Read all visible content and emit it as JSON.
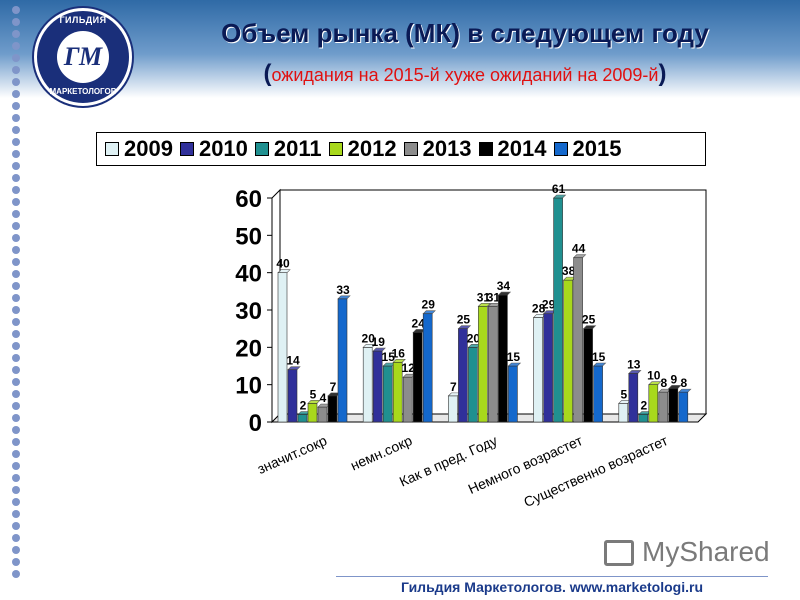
{
  "header": {
    "title": "Объем рынка (МК) в следующем году",
    "subtitle_open": "(",
    "subtitle_text": "ожидания на 2015-й хуже ожиданий на 2009-й",
    "subtitle_close": ")"
  },
  "logo": {
    "top_text": "ГИЛЬДИЯ",
    "monogram": "ГМ",
    "bottom_text": "МАРКЕТОЛОГОВ"
  },
  "chart_data": {
    "type": "bar",
    "categories": [
      "значит.сокр",
      "немн.сокр",
      "Как в пред. Году",
      "Немного возрастет",
      "Существенно возрастет"
    ],
    "series": [
      {
        "name": "2009",
        "color": "#dff1f4",
        "values": [
          40,
          20,
          7,
          28,
          5
        ]
      },
      {
        "name": "2010",
        "color": "#30309a",
        "values": [
          14,
          19,
          25,
          29,
          13
        ]
      },
      {
        "name": "2011",
        "color": "#209090",
        "values": [
          2,
          15,
          20,
          61,
          2
        ]
      },
      {
        "name": "2012",
        "color": "#a8d81c",
        "values": [
          5,
          16,
          31,
          38,
          10
        ]
      },
      {
        "name": "2013",
        "color": "#8c8c8c",
        "values": [
          4,
          12,
          31,
          44,
          8
        ]
      },
      {
        "name": "2014",
        "color": "#000000",
        "values": [
          7,
          24,
          34,
          25,
          9
        ]
      },
      {
        "name": "2015",
        "color": "#1468cc",
        "values": [
          33,
          29,
          15,
          15,
          8
        ]
      }
    ],
    "yticks": [
      "0",
      "10",
      "20",
      "30",
      "40",
      "50",
      "60"
    ],
    "ylim": [
      0,
      60
    ],
    "grid": false,
    "legend": "top"
  },
  "mystat": {
    "logo_text": "MyShared"
  },
  "footer": {
    "text": "Гильдия Маркетологов. www.marketologi.ru"
  }
}
